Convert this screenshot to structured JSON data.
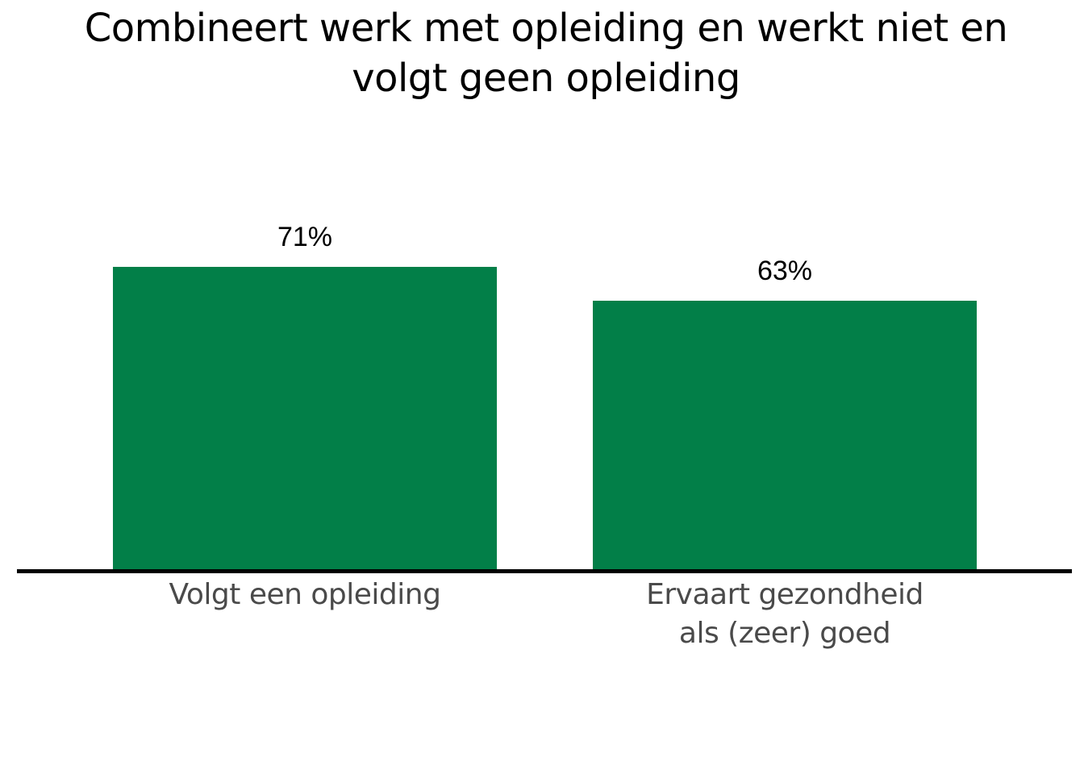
{
  "chart_data": {
    "type": "bar",
    "title": "Combineert werk met opleiding en werkt niet en volgt geen opleiding",
    "title_lines": [
      "Combineert werk met opleiding en werkt niet en",
      "volgt geen opleiding"
    ],
    "categories": [
      "Volgt een opleiding",
      "Ervaart gezondheid als (zeer) goed"
    ],
    "category_labels_display": [
      "Volgt een opleiding",
      "Ervaart gezondheid\nals (zeer) goed"
    ],
    "values": [
      71,
      63
    ],
    "value_labels": [
      "71%",
      "63%"
    ],
    "unit": "%",
    "xlabel": "",
    "ylabel": "",
    "ylim": [
      0,
      100
    ],
    "grid": false,
    "legend": null,
    "bar_color": "#027f48"
  }
}
